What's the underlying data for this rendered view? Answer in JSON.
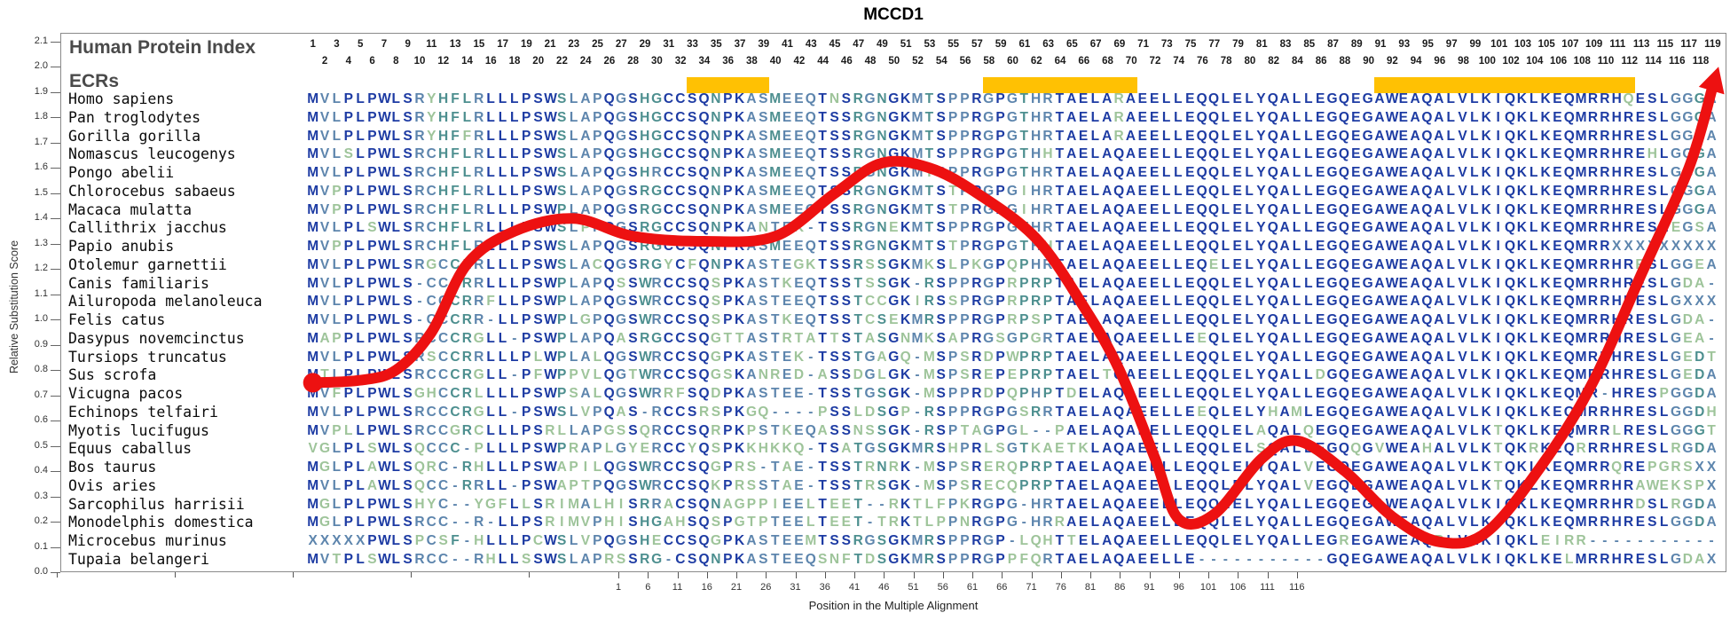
{
  "title": "MCCD1",
  "header": {
    "index_title": "Human Protein Index",
    "ecrs_title": "ECRs",
    "first_position": 1,
    "last_position": 119
  },
  "y_axis": {
    "title": "Relative Substitution Score",
    "min": 0.0,
    "max": 2.1,
    "step": 0.1
  },
  "x_axis": {
    "title": "Position in the Multiple Alignment",
    "first_label": 1,
    "label_step": 5,
    "last_label": 116
  },
  "colors": {
    "curve": "#ed1111",
    "ecr_bar": "#ffc103",
    "frame": "#8a8a8a",
    "conservation_high": "#1d3ba3",
    "conservation_medium": "#5d85ad",
    "conservation_low": "#4d8f8f",
    "conservation_lowest": "#9ec49a"
  },
  "ecrs": [
    {
      "from": 33,
      "to": 39
    },
    {
      "from": 58,
      "to": 70
    },
    {
      "from": 91,
      "to": 112
    }
  ],
  "alignment": [
    {
      "species": "Homo sapiens",
      "sequence": "MVLPLPWLSRYHFLRLLLPSWSLAPQGSHGCCSQNPKASMEEQTNSRGNGKMTSPPRGPGTHRTAELARAEELLEQQLELYQALLEGQEGAWEAQALVLKIQKLKEQMRRHQESLGGGA"
    },
    {
      "species": "Pan troglodytes",
      "sequence": "MVLPLPWLSRYHFLRLLLPSWSLAPQGSHGCCSQNPKASMEEQTSSRGNGKMTSPPRGPGTHRTAELARAEELLEQQLELYQALLEGQEGAWEAQALVLKIQKLKEQMRRHRESLGGGA"
    },
    {
      "species": "Gorilla gorilla",
      "sequence": "MVLPLPWLSRYHFFRLLLPSWSLAPQGSHGCCSQNPKASMEEQTSSRGNGKMTSPPRGPGTHRTAELARAEELLEQQLELYQALLEGQEGAWEAQALVLKIQKLKEQMRRHRESLGGGA"
    },
    {
      "species": "Nomascus leucogenys",
      "sequence": "MVLSLPWLSRCHFLRLLLPSWSLAPQGSHGCCSQNPKASMEEQTSSRGNGKMTSPPRGPGTHHTAELAQAEELLEQQLELYQALLEGQEGAWEAQALVLKIQKLKEQMRRHREHLGGGA"
    },
    {
      "species": "Pongo abelii",
      "sequence": "MVLPLPWLSRCHFLRLLLPSWSLAPQGSHRCCSQNPKASMEEQTSSRGNGKMISPPRGPGTHRTAELAQAEELLEQQLELYQALLEGQEGAWEAQALVLKIQKLKEQMRRHRESLGGGA"
    },
    {
      "species": "Chlorocebus sabaeus",
      "sequence": "MVPPLPWLSRCHFLRLLLPSWSLAPQGSRGCCSQNPKASMEEQTSSRGNGKMTSTPRGPGIHRTAELAQAEELLEQQLELYQALLEGQEGAWEAQALVLKIQKLKEQMRRHRESLGGGA"
    },
    {
      "species": "Macaca mulatta",
      "sequence": "MVPPLPWLSRCHFLRLLLPSWPLAPQGSRGCCSQNPKASMEEQTSSRGNGKMTSTPRGPGIHRTAELAQAEELLEQQLELYQALLEGQEGAWEAQALVLKIQKLKEQMRRHRESLGGGA"
    },
    {
      "species": "Callithrix jacchus",
      "sequence": "MVLPLSWLSRCHFLRLLLPSWSLPPQGSRGCCSQNPKANTEK-TSSRGNEKMTSPPRGPGTHRTAELAQAEELLEQQLELYQALLEGQEGAWEAQALVLKIQKLKEQMRRHRESLEGSA"
    },
    {
      "species": "Papio anubis",
      "sequence": "MVPPLPWLSRCHFLRLLLPSWSLAPQGSRGCCSQNPKASMEEQTSSRGNGKMTSTPRGPGTHHTAELAQAEELLEQQLELYQALLEGQEGAWEAQALVLKIQKLKEQMRRXXXXXXXXX"
    },
    {
      "species": "Otolemur garnettii",
      "sequence": "MVLPLPWLSRGCCLRLLLPSWSLACQGSRGYCFQNPKASTEGKTSSRSSGKMKSLPKGPQPHRTAELAQAEELLEQELELYQALLEGQEGAWEAQALVLKIQKLKEQMRRHRRSLGGEA"
    },
    {
      "species": "Canis familiaris",
      "sequence": "MVLPLPWLS-CCCRRLLLPSWPLAPQSSWRCCSQSPKASTKEQTSSTSSGK-RSPPRGPRPRPTAELAQAEELLEQQLELYQALLEGQEGAWEAQALVLKIQKLKEQMRRHRESLGDA-"
    },
    {
      "species": "Ailuropoda melanoleuca",
      "sequence": "MVLPLPWLS-CCCRRFLLPSWPLAPQGSWRCCSQSPKASTEEQTSSTCCGKIRSSPRGPRPRPTAELAQAEELLEQQLELYQALLEGQEGAWEAQALVLKIQKLKEQMRRHRESLGXXX"
    },
    {
      "species": "Felis catus",
      "sequence": "MVLPLPWLS-CCCRR-LLPSWPLGPQGSWRCCSQSPKASTKEQTSSTCSEKMRSPPRGPRPSPTAELAQAEELLEQQLELYQALLEGQEGAWEAQALVLKIQKLKEQMRRHRESLGDA-"
    },
    {
      "species": "Dasypus novemcinctus",
      "sequence": "MAPPLPWLSRCCCRGLL-PSWPLAPQASRGCCSQGTTASTRTATTSTASGNMKSAPRGSGPGRTAELAQAEELLEEQLELYQALLEGQEGAWEAQALVLKIQKLKEQMRRHRESLGEA-"
    },
    {
      "species": "Tursiops truncatus",
      "sequence": "MVLPLPWLSRSCCRRLLLPLWPLALQGSWRCCSQGPKASTEK-TSSTGAGQ-MSPSRDPWPRPTAELAQAEELLEQQLELYQALLEGQEGAWEAQALVLKIQKLKEQMRRHRESLGEDT"
    },
    {
      "species": "Sus scrofa",
      "sequence": "MTLPLPWLSRCCCRGLL-PFWPPVLQGTWRCCSQGSKANRED-ASSDGLGK-MSPSREPEPRPTAELTQAEELLEQQLELYQALLDGQEGAWEAQALVLKIQKLKEQMRRHRESLGEDA"
    },
    {
      "species": "Vicugna pacos",
      "sequence": "MVFPLPWLSGHCCRLLLLPSWPSALQGSWRRFSQDPKASTEE-TSSTGSGK-MSPPRDPQPHPTDELAQAEELLEQQLELYQALLEGQEGAWEAQALVLKIQKLKEQMR-HRESPGGDA"
    },
    {
      "species": "Echinops telfairi",
      "sequence": "MVLPLPWLSRCCCRGLL-PSWSLVPQAS-RCCSRSPKGQ----PSSLDSGP-RSPPRGPGSRRTAELAQAEELLEEQLELYHAMLEGQEGAWEAQALVLKIQKLKEQMRRHRESLGGDH"
    },
    {
      "species": "Myotis lucifugus",
      "sequence": "MVPLLPWLSRCCGRCLLLPSRLLAPGSSQRCCSQRPKPSTKEQASSNSSGK-RSPTAGPGL--PAELAQAEELLEQQLELAQALQEGQEGAWEAQALVLKTQKLKEQMRRLRESLGGGT"
    },
    {
      "species": "Equus caballus",
      "sequence": "VGLPLSWLSQCCC-PLLLPSWPRAPLGYERCCYQSPKKHKKQ-TSATGSGKMRSHPRLSGTKAETKLAQAEELLEQQLELSQALLEGQQGVWEAHALVLKTQKRKEQRRRHRESLRGDA"
    },
    {
      "species": "Bos taurus",
      "sequence": "MGLPLAWLSQRC-RHLLLPSWAPILQGSWRCCSQGPRS-TAE-TSSTRNRK-MSPSRERQPRPTAELAQAEELLEQQLELYQALVEGQEGAWEAQALVLKTQKLKEQMRRQREPGRSXX"
    },
    {
      "species": "Ovis aries",
      "sequence": "MVLPLAWLSQCC-RRLL-PSWAPTPQGSWRCCSQKPRSSTAE-TSSTRSGK-MSPSRECQPRPTAELAQAEELLEQQLELYQALVEGQEGAWEAQALVLKTQKLKEQMRRHRAWEKSPX"
    },
    {
      "species": "Sarcophilus harrisii",
      "sequence": "MGLPLPWLSHYC--YGFLLSRIMALHISRRACSQNAGPPIEELTEET--RKTLFPKRGPG-HRTAELAQAEELLEQQLELYQALLEGQEGAWEAQALVLKIQKLKEQMRRHRDSLRGDA"
    },
    {
      "species": "Monodelphis domestica",
      "sequence": "MGLPLPWLSRCC--R-LLPSRIMVPHISHGAHSQSPGTPTEELTEET-TRKTLPPNRGPG-HRRAELAQAEELLEQQLELYQALLEGQEGAWEAQALVLKIQKLKEQMRRHRESLGGDA"
    },
    {
      "species": "Microcebus murinus",
      "sequence": "XXXXXPWLSPCSF-HLLLPCWSLVPQGSHECCSQGPKASTEEMTSSRGSGKMRSPPRGP-LQHTTELAQAEELLEQQLELYQALLEGREGAWEAQPLVLKIQKLEIRR-----------"
    },
    {
      "species": "Tupaia belangeri",
      "sequence": "MVTPLSWLSRCC--RHLLSSWSLAPRSSRG-CSQNPKASTEEQSNFTDSGKMRSPPRGPPFQRTAELAQAEELLE-----------GQEGAWEAQALVLKIQKLKELMRRHRESLGDAX"
    }
  ],
  "chart_data": {
    "type": "line",
    "title": "MCCD1",
    "xlabel": "Position in the Multiple Alignment",
    "ylabel": "Relative Substitution Score",
    "xlim": [
      1,
      119
    ],
    "ylim": [
      0.0,
      2.1
    ],
    "grid": false,
    "series": [
      {
        "name": "relative substitution score",
        "x": [
          1,
          5,
          8,
          11,
          14,
          18,
          23,
          28,
          34,
          40,
          45,
          49,
          53,
          57,
          62,
          66,
          69,
          72,
          74,
          77,
          81,
          84,
          88,
          92,
          96,
          100,
          105,
          109,
          113,
          117,
          119
        ],
        "y": [
          0.75,
          0.76,
          0.8,
          0.95,
          1.22,
          1.35,
          1.4,
          1.33,
          1.31,
          1.33,
          1.5,
          1.62,
          1.6,
          1.5,
          1.32,
          1.05,
          0.8,
          0.45,
          0.21,
          0.23,
          0.45,
          0.52,
          0.4,
          0.22,
          0.12,
          0.16,
          0.45,
          0.76,
          1.18,
          1.6,
          1.92
        ]
      }
    ],
    "annotations": {
      "ecr_regions_alignment_positions": [
        [
          33,
          39
        ],
        [
          58,
          70
        ],
        [
          91,
          112
        ]
      ]
    }
  }
}
